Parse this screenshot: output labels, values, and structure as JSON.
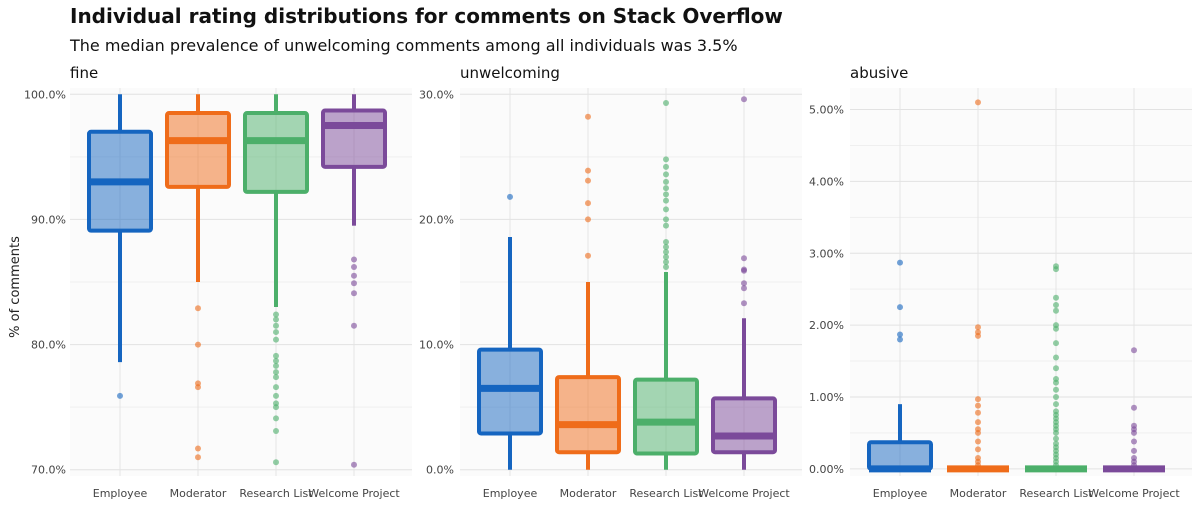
{
  "title": "Individual rating distributions for comments on Stack Overflow",
  "subtitle": "The median prevalence of unwelcoming comments among all individuals was 3.5%",
  "ylabel": "% of comments",
  "colors": {
    "Employee": "#1565C0",
    "Moderator": "#EF6C1A",
    "Research List": "#4CAF6A",
    "Welcome Project": "#7B4A9A"
  },
  "chart_data": [
    {
      "type": "box",
      "title": "fine",
      "categories": [
        "Employee",
        "Moderator",
        "Research List",
        "Welcome Project"
      ],
      "ylim": [
        69.5,
        100.5
      ],
      "yticks": [
        70,
        80,
        90,
        100
      ],
      "yticklabels": [
        "70.0%",
        "80.0%",
        "90.0%",
        "100.0%"
      ],
      "boxes": [
        {
          "name": "Employee",
          "whisker_low": 78.6,
          "q1": 89.1,
          "median": 93.0,
          "q3": 97.0,
          "whisker_high": 100.0,
          "outliers": [
            75.9
          ]
        },
        {
          "name": "Moderator",
          "whisker_low": 85.0,
          "q1": 92.6,
          "median": 96.3,
          "q3": 98.5,
          "whisker_high": 100.0,
          "outliers": [
            82.9,
            80.0,
            76.9,
            76.6,
            71.7,
            71.0
          ]
        },
        {
          "name": "Research List",
          "whisker_low": 83.0,
          "q1": 92.2,
          "median": 96.3,
          "q3": 98.5,
          "whisker_high": 100.0,
          "outliers": [
            82.4,
            82.0,
            81.5,
            81.0,
            80.4,
            79.1,
            78.7,
            78.3,
            77.8,
            77.4,
            76.6,
            75.9,
            75.3,
            75.0,
            74.1,
            73.1,
            70.6
          ]
        },
        {
          "name": "Welcome Project",
          "whisker_low": 89.5,
          "q1": 94.2,
          "median": 97.5,
          "q3": 98.7,
          "whisker_high": 100.0,
          "outliers": [
            86.8,
            86.2,
            85.5,
            84.9,
            84.1,
            81.5,
            70.4
          ]
        }
      ]
    },
    {
      "type": "box",
      "title": "unwelcoming",
      "categories": [
        "Employee",
        "Moderator",
        "Research List",
        "Welcome Project"
      ],
      "ylim": [
        -0.5,
        30.5
      ],
      "yticks": [
        0,
        10,
        20,
        30
      ],
      "yticklabels": [
        "0.0%",
        "10.0%",
        "20.0%",
        "30.0%"
      ],
      "boxes": [
        {
          "name": "Employee",
          "whisker_low": 0.0,
          "q1": 2.9,
          "median": 6.5,
          "q3": 9.6,
          "whisker_high": 18.6,
          "outliers": [
            21.8
          ]
        },
        {
          "name": "Moderator",
          "whisker_low": 0.0,
          "q1": 1.4,
          "median": 3.6,
          "q3": 7.4,
          "whisker_high": 15.0,
          "outliers": [
            17.1,
            20.0,
            21.3,
            23.1,
            23.9,
            28.2
          ]
        },
        {
          "name": "Research List",
          "whisker_low": 0.0,
          "q1": 1.3,
          "median": 3.8,
          "q3": 7.2,
          "whisker_high": 15.8,
          "outliers": [
            16.2,
            16.6,
            17.0,
            17.4,
            17.8,
            18.2,
            19.5,
            20.0,
            20.8,
            21.5,
            22.0,
            22.5,
            23.0,
            23.6,
            24.2,
            24.8,
            29.3
          ]
        },
        {
          "name": "Welcome Project",
          "whisker_low": 0.0,
          "q1": 1.4,
          "median": 2.7,
          "q3": 5.7,
          "whisker_high": 12.1,
          "outliers": [
            13.3,
            14.5,
            14.9,
            15.9,
            16.0,
            16.9,
            29.6
          ]
        }
      ]
    },
    {
      "type": "box",
      "title": "abusive",
      "categories": [
        "Employee",
        "Moderator",
        "Research List",
        "Welcome Project"
      ],
      "ylim": [
        -0.1,
        5.3
      ],
      "yticks": [
        0,
        1,
        2,
        3,
        4,
        5
      ],
      "yticklabels": [
        "0.00%",
        "1.00%",
        "2.00%",
        "3.00%",
        "4.00%",
        "5.00%"
      ],
      "boxes": [
        {
          "name": "Employee",
          "whisker_low": 0.0,
          "q1": 0.0,
          "median": 0.0,
          "q3": 0.37,
          "whisker_high": 0.9,
          "outliers": [
            1.8,
            1.87,
            2.25,
            2.87
          ]
        },
        {
          "name": "Moderator",
          "whisker_low": 0.0,
          "q1": 0.0,
          "median": 0.0,
          "q3": 0.0,
          "whisker_high": 0.0,
          "outliers": [
            0.05,
            0.1,
            0.15,
            0.27,
            0.38,
            0.5,
            0.55,
            0.65,
            0.78,
            0.88,
            0.97,
            1.85,
            1.9,
            1.97,
            5.1
          ]
        },
        {
          "name": "Research List",
          "whisker_low": 0.0,
          "q1": 0.0,
          "median": 0.0,
          "q3": 0.0,
          "whisker_high": 0.0,
          "outliers": [
            0.05,
            0.1,
            0.15,
            0.2,
            0.25,
            0.3,
            0.35,
            0.42,
            0.5,
            0.55,
            0.6,
            0.65,
            0.7,
            0.75,
            0.8,
            0.9,
            1.0,
            1.1,
            1.2,
            1.25,
            1.4,
            1.55,
            1.75,
            1.95,
            2.0,
            2.2,
            2.28,
            2.38,
            2.78,
            2.82
          ]
        },
        {
          "name": "Welcome Project",
          "whisker_low": 0.0,
          "q1": 0.0,
          "median": 0.0,
          "q3": 0.0,
          "whisker_high": 0.0,
          "outliers": [
            0.05,
            0.1,
            0.15,
            0.25,
            0.38,
            0.5,
            0.55,
            0.6,
            0.85,
            1.65
          ]
        }
      ]
    }
  ]
}
